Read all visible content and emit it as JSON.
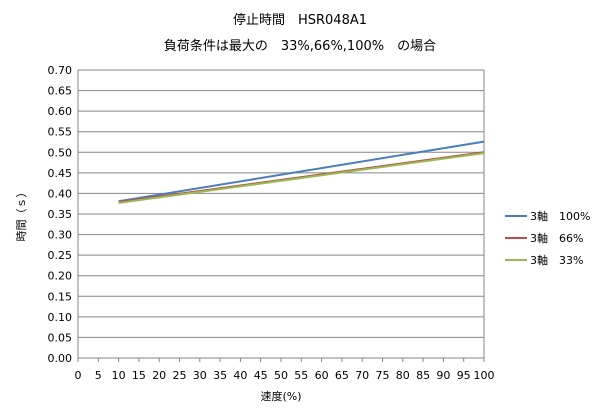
{
  "chart_data": {
    "type": "line",
    "title": "停止時間　HSR048A1",
    "subtitle": "負荷条件は最大の　33%,66%,100%　の場合",
    "xlabel": "速度(%)",
    "ylabel": "時間（ｓ）",
    "xlim": [
      0,
      100
    ],
    "ylim": [
      0,
      0.7
    ],
    "x_ticks": [
      "0",
      "5",
      "10",
      "15",
      "20",
      "25",
      "30",
      "35",
      "40",
      "45",
      "50",
      "55",
      "60",
      "65",
      "70",
      "75",
      "80",
      "85",
      "90",
      "95",
      "100"
    ],
    "y_ticks": [
      "0.00",
      "0.05",
      "0.10",
      "0.15",
      "0.20",
      "0.25",
      "0.30",
      "0.35",
      "0.40",
      "0.45",
      "0.50",
      "0.55",
      "0.60",
      "0.65",
      "0.70"
    ],
    "grid": true,
    "legend_position": "right",
    "series": [
      {
        "name": "3軸　100%",
        "color": "#4A7EBB",
        "x": [
          10,
          100
        ],
        "y": [
          0.381,
          0.526
        ]
      },
      {
        "name": "3軸　66%",
        "color": "#BE4B48",
        "x": [
          10,
          100
        ],
        "y": [
          0.379,
          0.5
        ]
      },
      {
        "name": "3軸　33%",
        "color": "#98B954",
        "x": [
          10,
          100
        ],
        "y": [
          0.377,
          0.498
        ]
      }
    ]
  }
}
